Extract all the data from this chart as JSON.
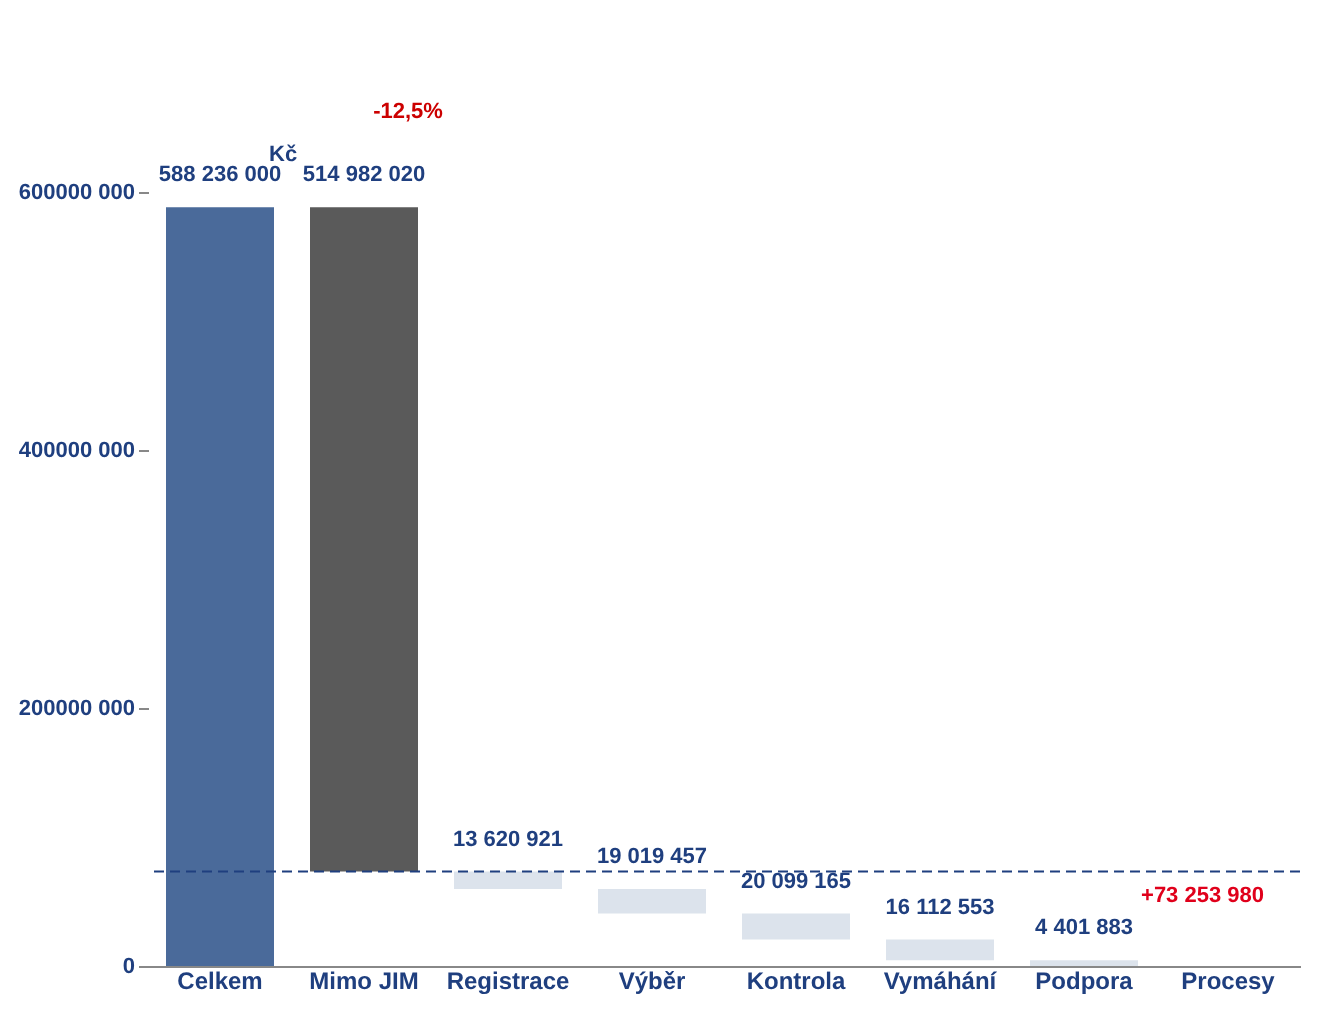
{
  "chart_data": {
    "type": "bar",
    "ylabel": "Kč",
    "categories": [
      "Celkem",
      "Mimo JIM",
      "Registrace",
      "Výběr",
      "Kontrola",
      "Vymáhání",
      "Podpora",
      "Procesy"
    ],
    "values": [
      588236000,
      514982020,
      13620921,
      19019457,
      20099165,
      16112553,
      4401883,
      null
    ],
    "base": [
      0,
      73253980,
      59633059,
      40613602,
      20514437,
      4401884,
      0,
      null
    ],
    "colors": [
      "#4a6a9a",
      "#5a5a5a",
      "#dce3ec",
      "#dce3ec",
      "#dce3ec",
      "#dce3ec",
      "#dce3ec",
      "#dce3ec"
    ],
    "value_labels": [
      "588 236 000",
      "514 982 020",
      "13 620 921",
      "19 019 457",
      "20 099 165",
      "16 112 553",
      "4 401 883",
      null
    ],
    "ylim": [
      0,
      600000000
    ],
    "yticks": [
      0,
      {
        "value": 200000000,
        "label": "200000 000"
      },
      {
        "value": 400000000,
        "label": "400000 000"
      },
      {
        "value": 600000000,
        "label": "600000 000"
      }
    ],
    "ref_lines": [
      {
        "axis": "y",
        "value": 73253980,
        "label": "+73 253 980",
        "color": "#1f3f7f",
        "line_style": "dashed"
      }
    ],
    "annotations": [
      "-12,5%"
    ],
    "grid": false
  }
}
